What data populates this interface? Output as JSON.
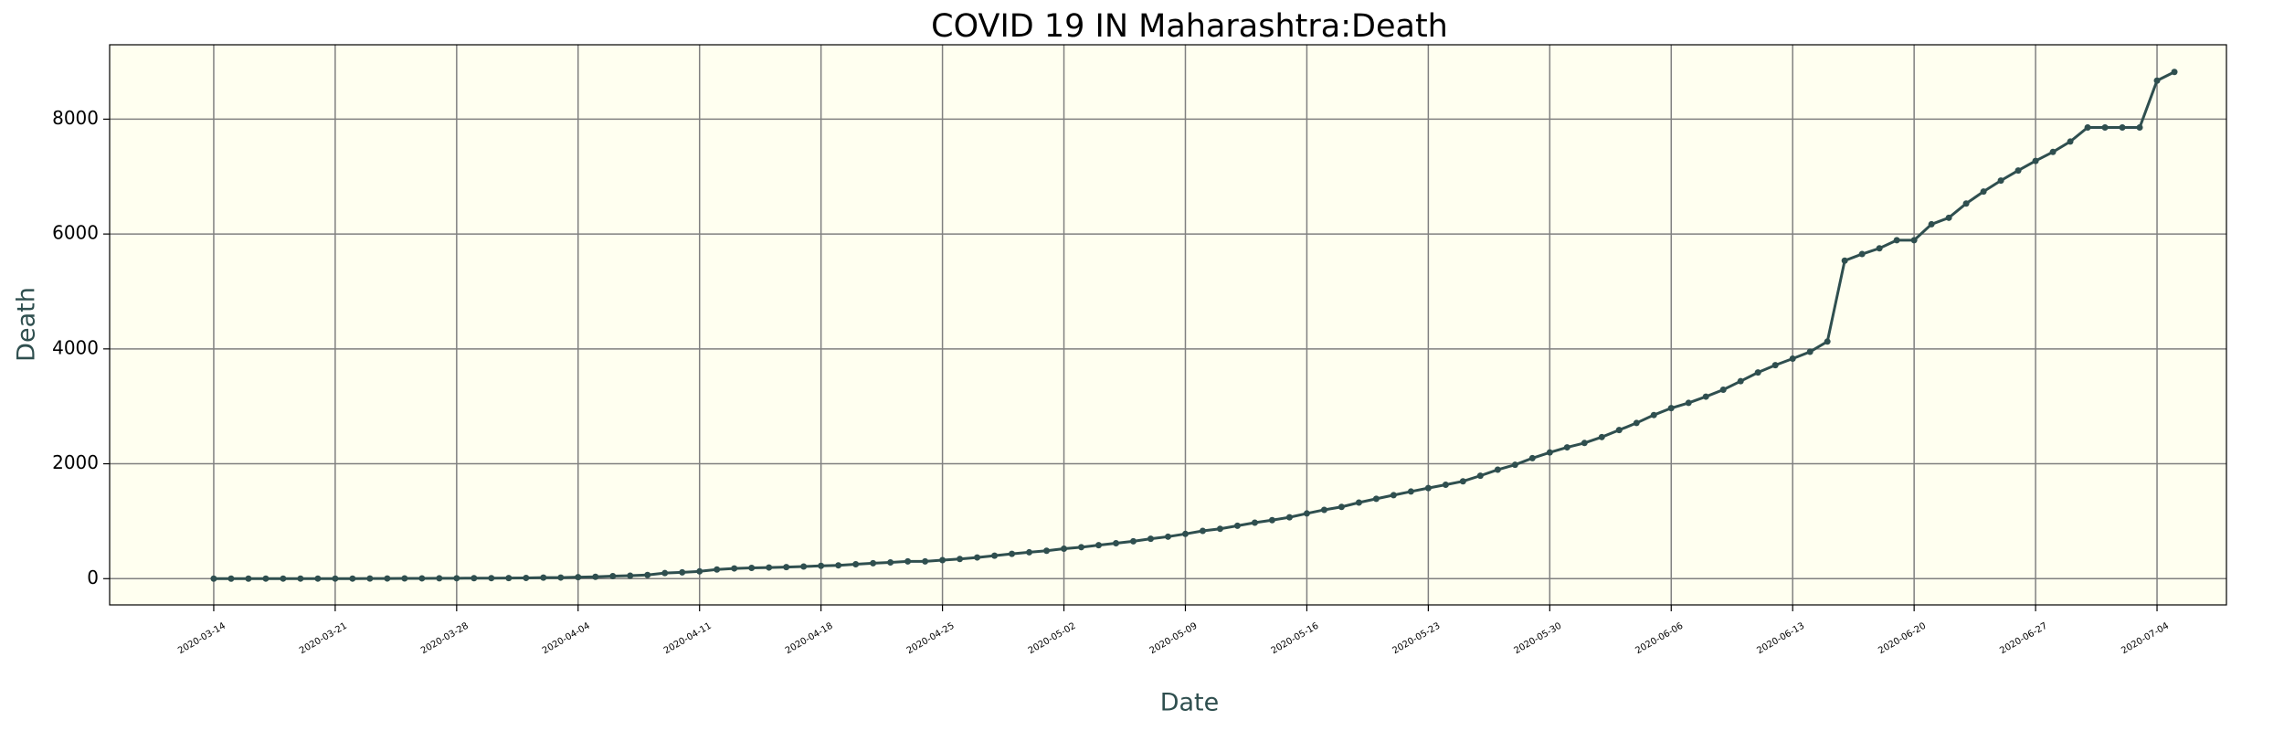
{
  "chart_data": {
    "type": "line",
    "title": "COVID 19 IN Maharashtra:Death",
    "xlabel": "Date",
    "ylabel": "Death",
    "x": [
      "2020-03-14",
      "2020-03-15",
      "2020-03-16",
      "2020-03-17",
      "2020-03-18",
      "2020-03-19",
      "2020-03-20",
      "2020-03-21",
      "2020-03-22",
      "2020-03-23",
      "2020-03-24",
      "2020-03-25",
      "2020-03-26",
      "2020-03-27",
      "2020-03-28",
      "2020-03-29",
      "2020-03-30",
      "2020-03-31",
      "2020-04-01",
      "2020-04-02",
      "2020-04-03",
      "2020-04-04",
      "2020-04-05",
      "2020-04-06",
      "2020-04-07",
      "2020-04-08",
      "2020-04-09",
      "2020-04-10",
      "2020-04-11",
      "2020-04-12",
      "2020-04-13",
      "2020-04-14",
      "2020-04-15",
      "2020-04-16",
      "2020-04-17",
      "2020-04-18",
      "2020-04-19",
      "2020-04-20",
      "2020-04-21",
      "2020-04-22",
      "2020-04-23",
      "2020-04-24",
      "2020-04-25",
      "2020-04-26",
      "2020-04-27",
      "2020-04-28",
      "2020-04-29",
      "2020-04-30",
      "2020-05-01",
      "2020-05-02",
      "2020-05-03",
      "2020-05-04",
      "2020-05-05",
      "2020-05-06",
      "2020-05-07",
      "2020-05-08",
      "2020-05-09",
      "2020-05-10",
      "2020-05-11",
      "2020-05-12",
      "2020-05-13",
      "2020-05-14",
      "2020-05-15",
      "2020-05-16",
      "2020-05-17",
      "2020-05-18",
      "2020-05-19",
      "2020-05-20",
      "2020-05-21",
      "2020-05-22",
      "2020-05-23",
      "2020-05-24",
      "2020-05-25",
      "2020-05-26",
      "2020-05-27",
      "2020-05-28",
      "2020-05-29",
      "2020-05-30",
      "2020-05-31",
      "2020-06-01",
      "2020-06-02",
      "2020-06-03",
      "2020-06-04",
      "2020-06-05",
      "2020-06-06",
      "2020-06-07",
      "2020-06-08",
      "2020-06-09",
      "2020-06-10",
      "2020-06-11",
      "2020-06-12",
      "2020-06-13",
      "2020-06-14",
      "2020-06-15",
      "2020-06-16",
      "2020-06-17",
      "2020-06-18",
      "2020-06-19",
      "2020-06-20",
      "2020-06-21",
      "2020-06-22",
      "2020-06-23",
      "2020-06-24",
      "2020-06-25",
      "2020-06-26",
      "2020-06-27",
      "2020-06-28",
      "2020-06-29",
      "2020-06-30",
      "2020-07-01",
      "2020-07-02",
      "2020-07-03",
      "2020-07-04",
      "2020-07-05"
    ],
    "series": [
      {
        "name": "Death",
        "color": "#2f4f4f",
        "values": [
          0,
          0,
          0,
          1,
          1,
          1,
          1,
          1,
          1,
          2,
          3,
          4,
          5,
          6,
          7,
          8,
          9,
          10,
          13,
          18,
          19,
          26,
          32,
          45,
          52,
          64,
          97,
          110,
          127,
          160,
          178,
          187,
          194,
          201,
          211,
          223,
          232,
          251,
          269,
          283,
          301,
          301,
          322,
          342,
          369,
          400,
          432,
          459,
          485,
          521,
          548,
          583,
          617,
          651,
          694,
          731,
          779,
          832,
          868,
          921,
          975,
          1019,
          1068,
          1135,
          1198,
          1249,
          1325,
          1390,
          1454,
          1517,
          1577,
          1635,
          1695,
          1792,
          1897,
          1982,
          2098,
          2197,
          2286,
          2362,
          2465,
          2587,
          2710,
          2849,
          2969,
          3060,
          3169,
          3289,
          3438,
          3590,
          3717,
          3830,
          3950,
          4128,
          5537,
          5651,
          5751,
          5893,
          5893,
          6170,
          6283,
          6531,
          6739,
          6931,
          7106,
          7273,
          7429,
          7610,
          7855,
          7855,
          7855,
          7855,
          8671,
          8822
        ]
      }
    ],
    "xlim": [
      "2020-03-08",
      "2020-07-08"
    ],
    "xticks": [
      "2020-03-14",
      "2020-03-21",
      "2020-03-28",
      "2020-04-04",
      "2020-04-11",
      "2020-04-18",
      "2020-04-25",
      "2020-05-02",
      "2020-05-09",
      "2020-05-16",
      "2020-05-23",
      "2020-05-30",
      "2020-06-06",
      "2020-06-13",
      "2020-06-20",
      "2020-06-27",
      "2020-07-04"
    ],
    "ylim": [
      -457,
      9295
    ],
    "yticks": [
      0,
      2000,
      4000,
      6000,
      8000
    ],
    "grid": true,
    "background": "#fffff0"
  }
}
